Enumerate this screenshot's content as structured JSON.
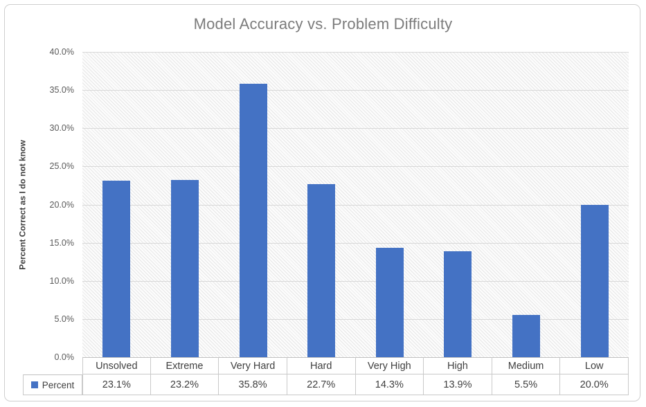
{
  "chart_data": {
    "type": "bar",
    "title": "Model Accuracy vs. Problem Difficulty",
    "xlabel": "",
    "ylabel": "Percent Correct as I do not know",
    "categories": [
      "Unsolved",
      "Extreme",
      "Very Hard",
      "Hard",
      "Very High",
      "High",
      "Medium",
      "Low"
    ],
    "series": [
      {
        "name": "Percent",
        "values": [
          23.1,
          23.2,
          35.8,
          22.7,
          14.3,
          13.9,
          5.5,
          20.0
        ]
      }
    ],
    "value_labels": [
      "23.1%",
      "23.2%",
      "35.8%",
      "22.7%",
      "14.3%",
      "13.9%",
      "5.5%",
      "20.0%"
    ],
    "ylim": [
      0,
      40
    ],
    "ytick_step": 5,
    "ytick_labels": [
      "40.0%",
      "35.0%",
      "30.0%",
      "25.0%",
      "20.0%",
      "15.0%",
      "10.0%",
      "5.0%",
      "0.0%"
    ],
    "grid": true,
    "legend_position": "bottom-data-table",
    "plot_fill_pattern": "light-downward-diagonal-hatch"
  },
  "legend": {
    "label": "Percent",
    "marker_color": "#4472C4"
  },
  "colors": {
    "bar": "#4472C4",
    "gridline": "#D8D8D8",
    "title_text": "#7B7B7B",
    "tick_text": "#595959",
    "table_text": "#3F3F3F",
    "table_border": "#C9C9C9",
    "frame_border": "#CFCFCF"
  }
}
